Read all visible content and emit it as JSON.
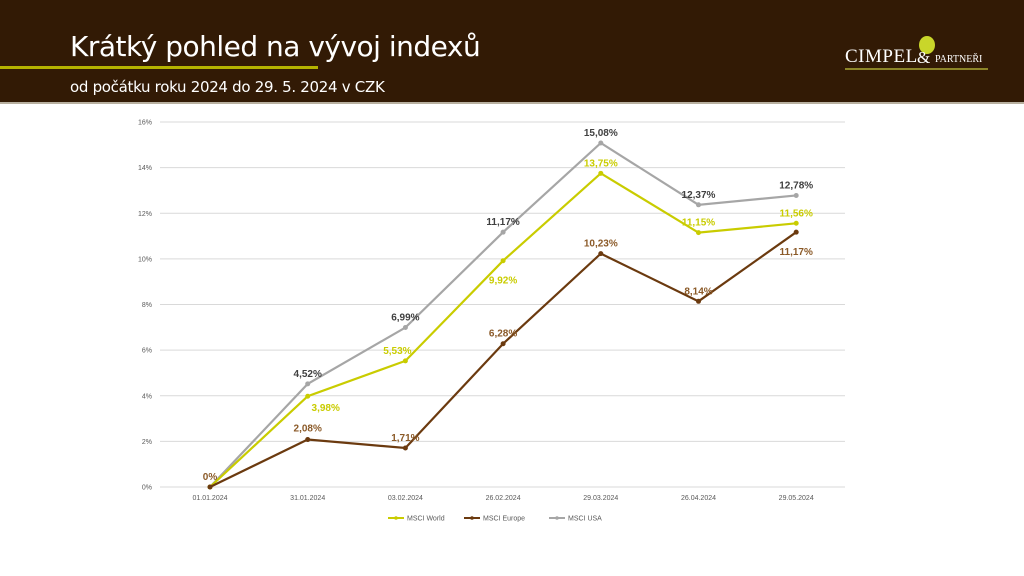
{
  "header": {
    "title": "Krátký pohled na vývoj indexů",
    "subtitle": "od počátku roku 2024  do 29. 5. 2024 v CZK",
    "logo_main": "CIMPEL",
    "logo_amp": "&",
    "logo_small": "PARTNEŘI"
  },
  "chart_data": {
    "type": "line",
    "title": "",
    "xlabel": "",
    "ylabel": "",
    "ylim": [
      0,
      16
    ],
    "yticks": [
      "0%",
      "2%",
      "4%",
      "6%",
      "8%",
      "10%",
      "12%",
      "14%",
      "16%"
    ],
    "grid": true,
    "legend": "bottom",
    "categories": [
      "01.01.2024",
      "31.01.2024",
      "03.02.2024",
      "26.02.2024",
      "29.03.2024",
      "26.04.2024",
      "29.05.2024"
    ],
    "series": [
      {
        "name": "MSCI World",
        "color": "#c9cc00",
        "label_color": "#c9cc00",
        "values": [
          0,
          3.98,
          5.53,
          9.92,
          13.75,
          11.15,
          11.56
        ],
        "labels": [
          "",
          "3,98%",
          "5,53%",
          "9,92%",
          "13,75%",
          "11,15%",
          "11,56%"
        ]
      },
      {
        "name": "MSCI Europe",
        "color": "#6b3a0f",
        "label_color": "#8b5a28",
        "values": [
          0,
          2.08,
          1.71,
          6.28,
          10.23,
          8.14,
          11.17
        ],
        "labels": [
          "0%",
          "2,08%",
          "1,71%",
          "6,28%",
          "10,23%",
          "8,14%",
          "11,17%"
        ]
      },
      {
        "name": "MSCI USA",
        "color": "#a6a6a6",
        "label_color": "#404040",
        "values": [
          0,
          4.52,
          6.99,
          11.17,
          15.08,
          12.37,
          12.78
        ],
        "labels": [
          "",
          "4,52%",
          "6,99%",
          "11,17%",
          "15,08%",
          "12,37%",
          "12,78%"
        ]
      }
    ]
  }
}
